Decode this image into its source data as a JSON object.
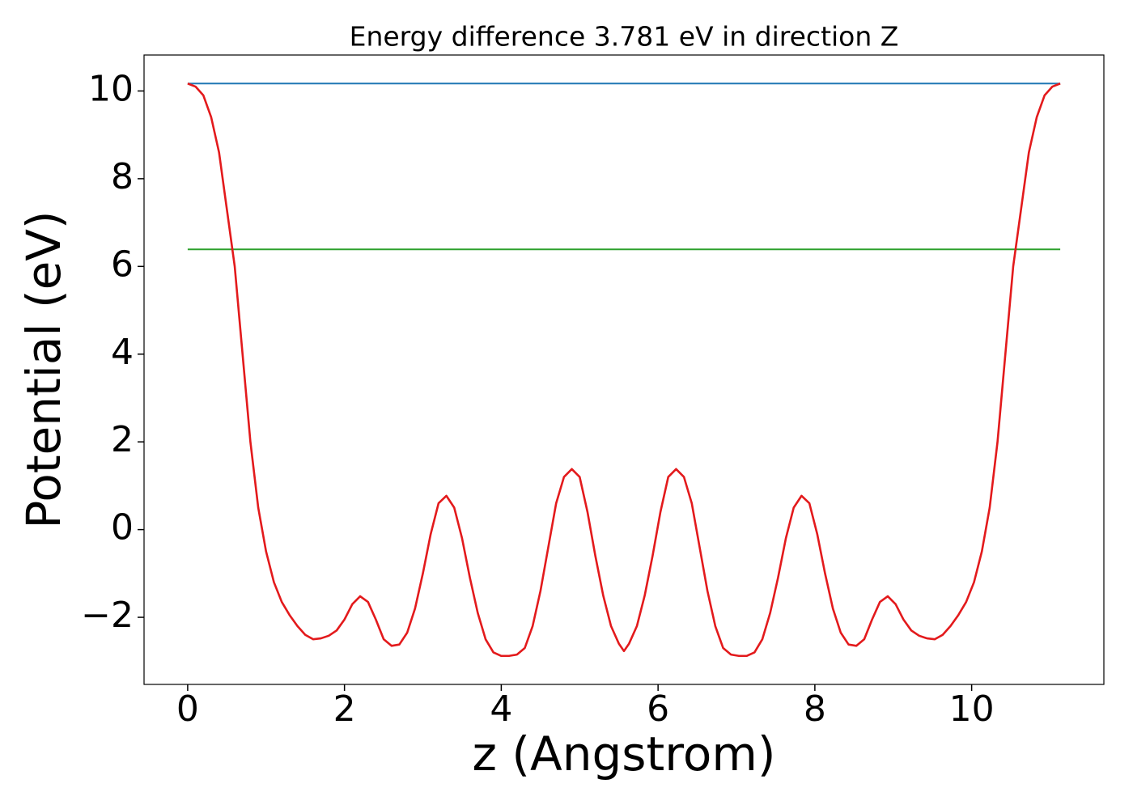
{
  "chart_data": {
    "type": "line",
    "title": "Energy difference 3.781 eV in direction Z",
    "xlabel": "z (Angstrom)",
    "ylabel": "Potential (eV)",
    "xlim": [
      -0.5565,
      11.6865
    ],
    "ylim": [
      -3.53,
      10.82
    ],
    "xticks": [
      0,
      2,
      4,
      6,
      8,
      10
    ],
    "yticks": [
      {
        "value": -2,
        "label": "−2"
      },
      0,
      2,
      4,
      6,
      8,
      10
    ],
    "series": [
      {
        "color": "#1f77b4",
        "x": [
          0,
          11.13
        ],
        "values": [
          10.17,
          10.17
        ]
      },
      {
        "color": "#2ca02c",
        "x": [
          0,
          11.13
        ],
        "values": [
          6.389,
          6.389
        ]
      },
      {
        "color": "#e31a1c",
        "x": [
          0,
          0.1,
          0.2,
          0.3,
          0.4,
          0.5,
          0.6,
          0.7,
          0.8,
          0.9,
          1.0,
          1.1,
          1.2,
          1.3,
          1.4,
          1.5,
          1.6,
          1.7,
          1.8,
          1.9,
          2.0,
          2.1,
          2.2,
          2.3,
          2.4,
          2.5,
          2.6,
          2.7,
          2.8,
          2.9,
          3.0,
          3.1,
          3.2,
          3.3,
          3.4,
          3.5,
          3.6,
          3.7,
          3.8,
          3.9,
          4.0,
          4.1,
          4.2,
          4.3,
          4.4,
          4.5,
          4.6,
          4.7,
          4.8,
          4.9,
          5.0,
          5.1,
          5.2,
          5.3,
          5.4,
          5.5,
          5.565,
          5.63,
          5.73,
          5.83,
          5.93,
          6.03,
          6.13,
          6.23,
          6.33,
          6.43,
          6.53,
          6.63,
          6.73,
          6.83,
          6.93,
          7.03,
          7.13,
          7.23,
          7.33,
          7.43,
          7.53,
          7.63,
          7.73,
          7.83,
          7.93,
          8.03,
          8.13,
          8.23,
          8.33,
          8.43,
          8.53,
          8.63,
          8.73,
          8.83,
          8.93,
          9.03,
          9.13,
          9.23,
          9.33,
          9.43,
          9.53,
          9.63,
          9.73,
          9.83,
          9.93,
          10.03,
          10.13,
          10.23,
          10.33,
          10.43,
          10.53,
          10.63,
          10.73,
          10.83,
          10.93,
          11.03,
          11.13
        ],
        "values": [
          10.17,
          10.1,
          9.9,
          9.4,
          8.6,
          7.3,
          6.0,
          4.0,
          2.0,
          0.5,
          -0.5,
          -1.2,
          -1.65,
          -1.95,
          -2.2,
          -2.4,
          -2.5,
          -2.48,
          -2.42,
          -2.3,
          -2.05,
          -1.7,
          -1.52,
          -1.65,
          -2.05,
          -2.5,
          -2.65,
          -2.62,
          -2.35,
          -1.8,
          -1.0,
          -0.1,
          0.6,
          0.77,
          0.5,
          -0.2,
          -1.1,
          -1.9,
          -2.5,
          -2.8,
          -2.88,
          -2.88,
          -2.85,
          -2.7,
          -2.2,
          -1.4,
          -0.4,
          0.6,
          1.2,
          1.38,
          1.2,
          0.4,
          -0.6,
          -1.5,
          -2.2,
          -2.6,
          -2.77,
          -2.6,
          -2.2,
          -1.5,
          -0.6,
          0.4,
          1.2,
          1.38,
          1.2,
          0.6,
          -0.4,
          -1.4,
          -2.2,
          -2.7,
          -2.85,
          -2.88,
          -2.88,
          -2.8,
          -2.5,
          -1.9,
          -1.1,
          -0.2,
          0.5,
          0.77,
          0.6,
          -0.1,
          -1.0,
          -1.8,
          -2.35,
          -2.62,
          -2.65,
          -2.5,
          -2.05,
          -1.65,
          -1.52,
          -1.7,
          -2.05,
          -2.3,
          -2.42,
          -2.48,
          -2.5,
          -2.4,
          -2.2,
          -1.95,
          -1.65,
          -1.2,
          -0.5,
          0.5,
          2.0,
          4.0,
          6.0,
          7.3,
          8.6,
          9.4,
          9.9,
          10.1,
          10.17
        ]
      }
    ]
  }
}
